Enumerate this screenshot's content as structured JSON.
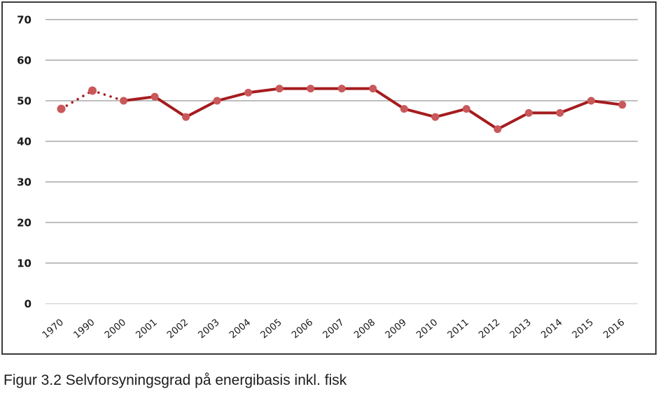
{
  "caption": "Figur 3.2 Selvforsyningsgrad på energibasis inkl. fisk",
  "chart_data": {
    "type": "line",
    "title": "",
    "xlabel": "",
    "ylabel": "",
    "ylim": [
      0,
      70
    ],
    "yticks": [
      "0",
      "10",
      "20",
      "30",
      "40",
      "50",
      "60",
      "70"
    ],
    "grid": true,
    "legend": "none",
    "categories": [
      "1970",
      "1990",
      "2000",
      "2001",
      "2002",
      "2003",
      "2004",
      "2005",
      "2006",
      "2007",
      "2008",
      "2009",
      "2010",
      "2011",
      "2012",
      "2013",
      "2014",
      "2015",
      "2016"
    ],
    "series": [
      {
        "name": "Selvforsyningsgrad",
        "values": [
          48,
          52.5,
          50,
          51,
          46,
          50,
          52,
          53,
          53,
          53,
          53,
          48,
          46,
          48,
          43,
          47,
          47,
          50,
          49
        ],
        "dotted_segments_until_index": 2,
        "line_color": "#a51c1f",
        "marker_color": "#c9585a"
      }
    ]
  }
}
